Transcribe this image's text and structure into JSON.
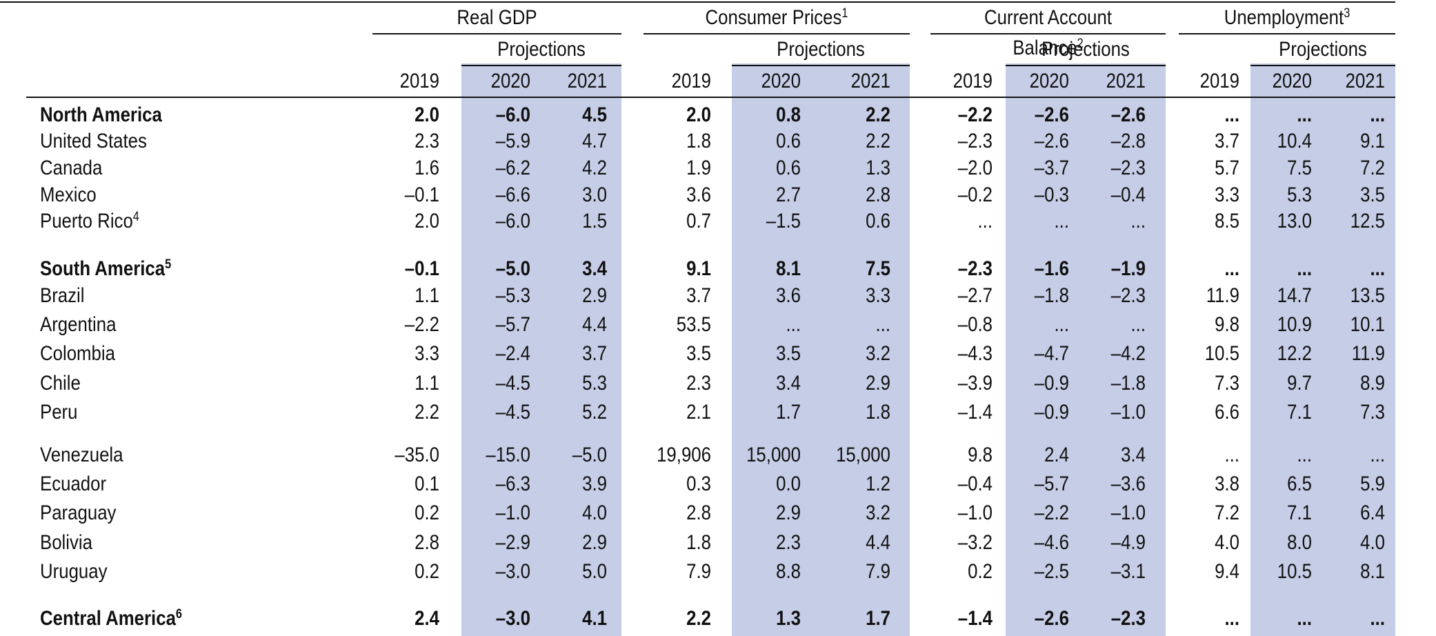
{
  "header": {
    "groups": [
      {
        "key": "gdp",
        "label": "Real GDP",
        "note": ""
      },
      {
        "key": "cpi",
        "label": "Consumer Prices",
        "note": "1"
      },
      {
        "key": "cab",
        "label": "Current Account Balance",
        "note": "2"
      },
      {
        "key": "unemp",
        "label": "Unemployment",
        "note": "3"
      }
    ],
    "projections_label": "Projections",
    "years": [
      "2019",
      "2020",
      "2021"
    ]
  },
  "rows": [
    {
      "name": "North America",
      "note": "",
      "bold": true,
      "values": [
        "2.0",
        "–6.0",
        "4.5",
        "2.0",
        "0.8",
        "2.2",
        "–2.2",
        "–2.6",
        "–2.6",
        "...",
        "...",
        "..."
      ]
    },
    {
      "name": "United States",
      "note": "",
      "bold": false,
      "values": [
        "2.3",
        "–5.9",
        "4.7",
        "1.8",
        "0.6",
        "2.2",
        "–2.3",
        "–2.6",
        "–2.8",
        "3.7",
        "10.4",
        "9.1"
      ]
    },
    {
      "name": "Canada",
      "note": "",
      "bold": false,
      "values": [
        "1.6",
        "–6.2",
        "4.2",
        "1.9",
        "0.6",
        "1.3",
        "–2.0",
        "–3.7",
        "–2.3",
        "5.7",
        "7.5",
        "7.2"
      ]
    },
    {
      "name": "Mexico",
      "note": "",
      "bold": false,
      "values": [
        "–0.1",
        "–6.6",
        "3.0",
        "3.6",
        "2.7",
        "2.8",
        "–0.2",
        "–0.3",
        "–0.4",
        "3.3",
        "5.3",
        "3.5"
      ]
    },
    {
      "name": "Puerto Rico",
      "note": "4",
      "bold": false,
      "values": [
        "2.0",
        "–6.0",
        "1.5",
        "0.7",
        "–1.5",
        "0.6",
        "...",
        "...",
        "...",
        "8.5",
        "13.0",
        "12.5"
      ]
    },
    {
      "name": "South America",
      "note": "5",
      "bold": true,
      "values": [
        "–0.1",
        "–5.0",
        "3.4",
        "9.1",
        "8.1",
        "7.5",
        "–2.3",
        "–1.6",
        "–1.9",
        "...",
        "...",
        "..."
      ]
    },
    {
      "name": "Brazil",
      "note": "",
      "bold": false,
      "values": [
        "1.1",
        "–5.3",
        "2.9",
        "3.7",
        "3.6",
        "3.3",
        "–2.7",
        "–1.8",
        "–2.3",
        "11.9",
        "14.7",
        "13.5"
      ]
    },
    {
      "name": "Argentina",
      "note": "",
      "bold": false,
      "values": [
        "–2.2",
        "–5.7",
        "4.4",
        "53.5",
        "...",
        "...",
        "–0.8",
        "...",
        "...",
        "9.8",
        "10.9",
        "10.1"
      ]
    },
    {
      "name": "Colombia",
      "note": "",
      "bold": false,
      "values": [
        "3.3",
        "–2.4",
        "3.7",
        "3.5",
        "3.5",
        "3.2",
        "–4.3",
        "–4.7",
        "–4.2",
        "10.5",
        "12.2",
        "11.9"
      ]
    },
    {
      "name": "Chile",
      "note": "",
      "bold": false,
      "values": [
        "1.1",
        "–4.5",
        "5.3",
        "2.3",
        "3.4",
        "2.9",
        "–3.9",
        "–0.9",
        "–1.8",
        "7.3",
        "9.7",
        "8.9"
      ]
    },
    {
      "name": "Peru",
      "note": "",
      "bold": false,
      "values": [
        "2.2",
        "–4.5",
        "5.2",
        "2.1",
        "1.7",
        "1.8",
        "–1.4",
        "–0.9",
        "–1.0",
        "6.6",
        "7.1",
        "7.3"
      ]
    },
    {
      "name": "Venezuela",
      "note": "",
      "bold": false,
      "values": [
        "–35.0",
        "–15.0",
        "–5.0",
        "19,906",
        "15,000",
        "15,000",
        "9.8",
        "2.4",
        "3.4",
        "...",
        "...",
        "..."
      ]
    },
    {
      "name": "Ecuador",
      "note": "",
      "bold": false,
      "values": [
        "0.1",
        "–6.3",
        "3.9",
        "0.3",
        "0.0",
        "1.2",
        "–0.4",
        "–5.7",
        "–3.6",
        "3.8",
        "6.5",
        "5.9"
      ]
    },
    {
      "name": "Paraguay",
      "note": "",
      "bold": false,
      "values": [
        "0.2",
        "–1.0",
        "4.0",
        "2.8",
        "2.9",
        "3.2",
        "–1.0",
        "–2.2",
        "–1.0",
        "7.2",
        "7.1",
        "6.4"
      ]
    },
    {
      "name": "Bolivia",
      "note": "",
      "bold": false,
      "values": [
        "2.8",
        "–2.9",
        "2.9",
        "1.8",
        "2.3",
        "4.4",
        "–3.2",
        "–4.6",
        "–4.9",
        "4.0",
        "8.0",
        "4.0"
      ]
    },
    {
      "name": "Uruguay",
      "note": "",
      "bold": false,
      "values": [
        "0.2",
        "–3.0",
        "5.0",
        "7.9",
        "8.8",
        "7.9",
        "0.2",
        "–2.5",
        "–3.1",
        "9.4",
        "10.5",
        "8.1"
      ]
    },
    {
      "name": "Central America",
      "note": "6",
      "bold": true,
      "values": [
        "2.4",
        "–3.0",
        "4.1",
        "2.2",
        "1.3",
        "1.7",
        "–1.4",
        "–2.6",
        "–2.3",
        "...",
        "...",
        "..."
      ]
    }
  ]
}
